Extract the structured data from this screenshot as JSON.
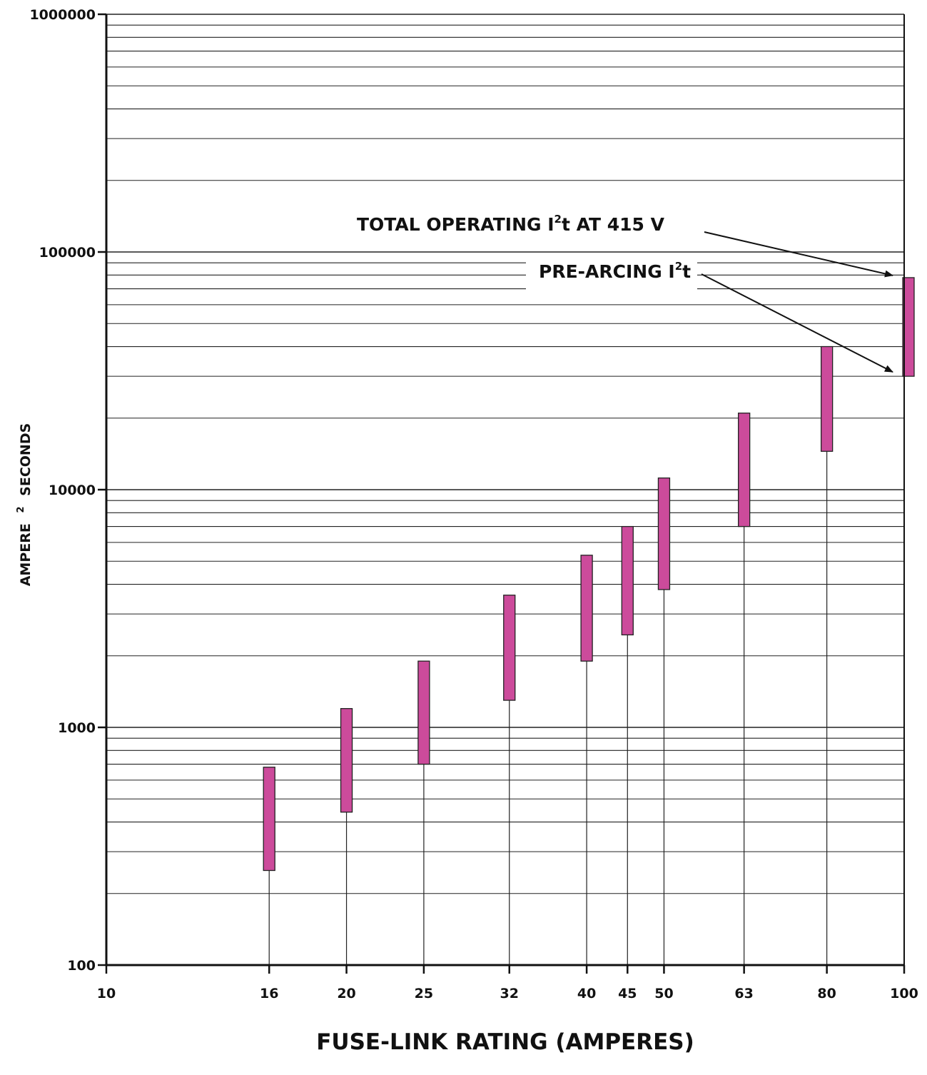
{
  "chart_data": {
    "type": "bar",
    "subtype": "floating-range-bars",
    "xscale": "log",
    "yscale": "log",
    "xlim": [
      10,
      100
    ],
    "ylim": [
      100,
      1000000
    ],
    "grid": "horizontal minor + major lines",
    "xlabel": "FUSE-LINK RATING (AMPERES)",
    "ylabel": {
      "pre": "AMPERE",
      "sup": "2",
      "post": "SECONDS"
    },
    "x_ticks": [
      "10",
      "16",
      "20",
      "25",
      "32",
      "40",
      "45",
      "50",
      "63",
      "80",
      "100"
    ],
    "y_ticks": [
      "100",
      "1000",
      "10000",
      "100000",
      "1000000"
    ],
    "bar_color": "#cc4b9b",
    "series": [
      {
        "name": "PRE-ARCING I²t",
        "role": "bar bottom"
      },
      {
        "name": "TOTAL OPERATING I²t AT 415 V",
        "role": "bar top"
      }
    ],
    "ratings": [
      16,
      20,
      25,
      32,
      40,
      45,
      50,
      63,
      80,
      100
    ],
    "pre_arcing": [
      250,
      440,
      700,
      1300,
      1900,
      2450,
      3800,
      7000,
      14500,
      30000
    ],
    "total_operating": [
      680,
      1200,
      1900,
      3600,
      5300,
      7000,
      11200,
      21000,
      40000,
      78000
    ],
    "annotations": [
      {
        "pre": "TOTAL OPERATING I",
        "sup": "2",
        "post": "t AT 415 V",
        "points_to": "total_operating",
        "at": 100
      },
      {
        "pre": "PRE-ARCING I",
        "sup": "2",
        "post": "t",
        "points_to": "pre_arcing",
        "at": 100
      }
    ]
  }
}
